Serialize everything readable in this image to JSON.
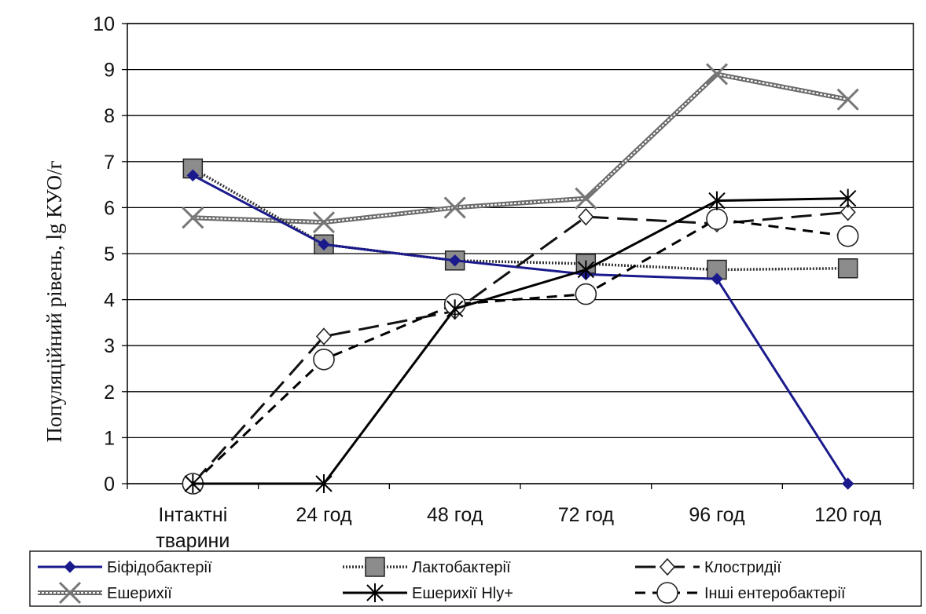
{
  "chart_data": {
    "type": "line",
    "title": "",
    "ylabel": "Популяційний рівень, lg КУО/г",
    "xlabel": "",
    "categories": [
      [
        "Інтактні",
        "тварини"
      ],
      [
        "24 год"
      ],
      [
        "48 год"
      ],
      [
        "72 год"
      ],
      [
        "96 год"
      ],
      [
        "120 год"
      ]
    ],
    "ylim": [
      0,
      10
    ],
    "yticks": [
      "0",
      "1",
      "2",
      "3",
      "4",
      "5",
      "6",
      "7",
      "8",
      "9",
      "10"
    ],
    "grid": "horizontal",
    "legend_position": "bottom",
    "series": [
      {
        "name": "Біфідобактерії",
        "values": [
          6.7,
          5.2,
          4.85,
          4.55,
          4.45,
          0
        ],
        "color": "#1a1a8c",
        "marker": "diamond-filled",
        "dash": "solid"
      },
      {
        "name": "Лактобактерії",
        "values": [
          6.85,
          5.2,
          4.85,
          4.78,
          4.65,
          4.68
        ],
        "color": "#333333",
        "marker": "square-gray",
        "dash": "dotted"
      },
      {
        "name": "Клостридії",
        "values": [
          0,
          3.2,
          3.75,
          5.8,
          5.65,
          5.9
        ],
        "color": "#111111",
        "marker": "diamond-open",
        "dash": "long-dash"
      },
      {
        "name": "Ешерихії",
        "values": [
          5.78,
          5.68,
          6.0,
          6.2,
          8.9,
          8.35
        ],
        "color": "#555555",
        "marker": "x-mark",
        "dash": "double"
      },
      {
        "name": "Ешерихії Hly+",
        "values": [
          0,
          0,
          3.8,
          4.65,
          6.15,
          6.2
        ],
        "color": "#000000",
        "marker": "asterisk",
        "dash": "solid"
      },
      {
        "name": "Інші ентеробактерії",
        "values": [
          0,
          2.7,
          3.9,
          4.12,
          5.75,
          5.38
        ],
        "color": "#000000",
        "marker": "circle-open",
        "dash": "short-dash"
      }
    ]
  }
}
